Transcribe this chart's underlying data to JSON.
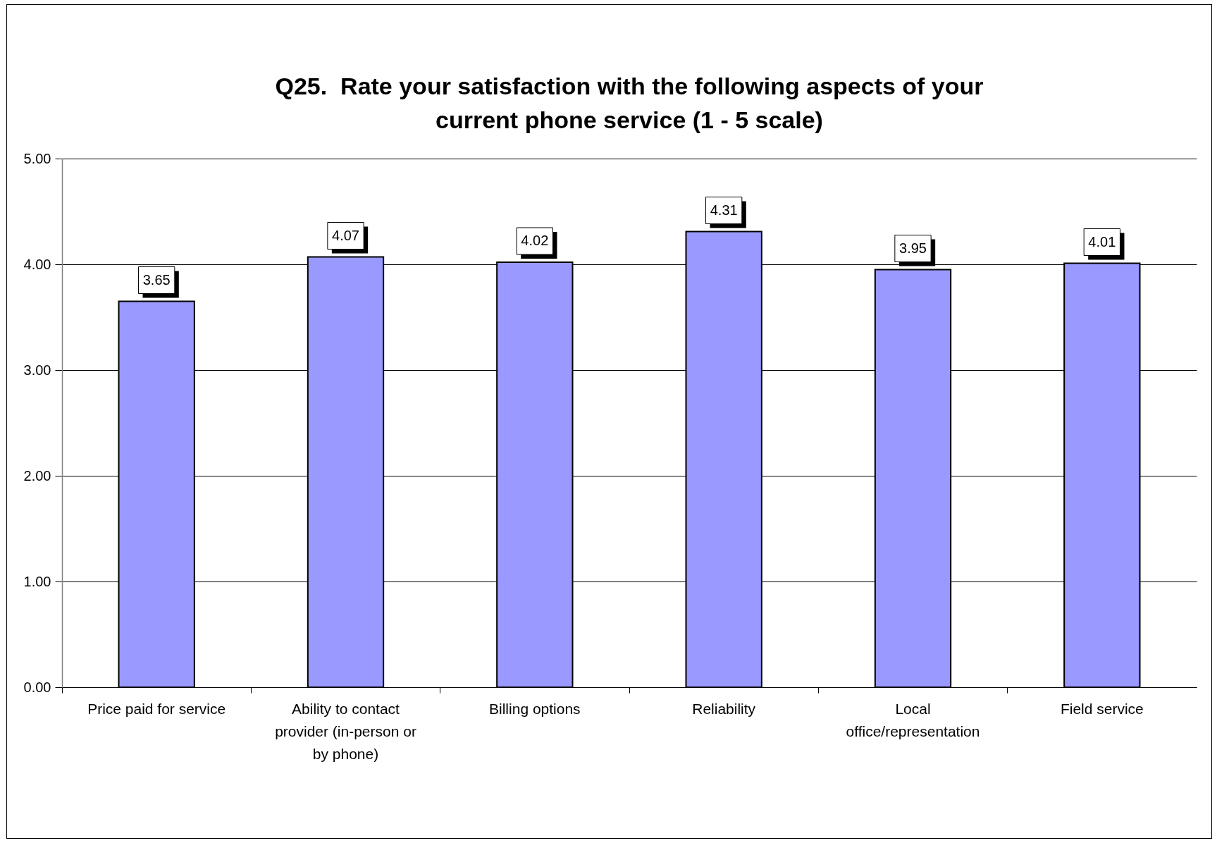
{
  "chart_data": {
    "type": "bar",
    "title": "Q25.  Rate your satisfaction with the following aspects of your current phone service (1 - 5 scale)",
    "categories": [
      "Price paid for service",
      "Ability to contact provider (in-person or by phone)",
      "Billing options",
      "Reliability",
      "Local office/representation",
      "Field service"
    ],
    "values": [
      3.65,
      4.07,
      4.02,
      4.31,
      3.95,
      4.01
    ],
    "color": "#9999ff",
    "ylim": [
      0,
      5
    ],
    "yticks": [
      {
        "value": 0,
        "label": "0.00"
      },
      {
        "value": 1,
        "label": "1.00"
      },
      {
        "value": 2,
        "label": "2.00"
      },
      {
        "value": 3,
        "label": "3.00"
      },
      {
        "value": 4,
        "label": "4.00"
      },
      {
        "value": 5,
        "label": "5.00"
      }
    ],
    "grid": "y",
    "data_labels": true
  }
}
